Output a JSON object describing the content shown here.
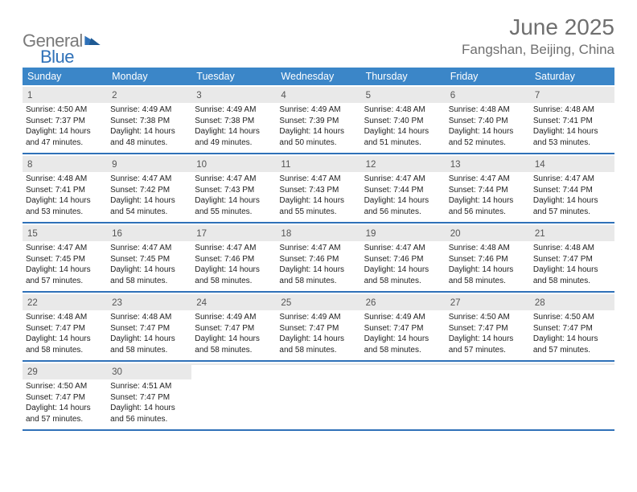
{
  "brand": {
    "part1": "General",
    "part2": "Blue"
  },
  "title": "June 2025",
  "location": "Fangshan, Beijing, China",
  "colors": {
    "header_bg": "#3b86c8",
    "divider": "#2f71b8",
    "day_header_bg": "#e9e9e9",
    "brand_gray": "#7a7a7a",
    "brand_blue": "#2f71b8",
    "title_gray": "#6f6f6f",
    "text": "#222222",
    "white": "#ffffff"
  },
  "typography": {
    "month_title_size": 28,
    "location_size": 17,
    "weekday_size": 12.5,
    "daynum_size": 11.5,
    "body_size": 10
  },
  "weekdays": [
    "Sunday",
    "Monday",
    "Tuesday",
    "Wednesday",
    "Thursday",
    "Friday",
    "Saturday"
  ],
  "weeks": [
    [
      {
        "n": "1",
        "sr": "Sunrise: 4:50 AM",
        "ss": "Sunset: 7:37 PM",
        "dl1": "Daylight: 14 hours",
        "dl2": "and 47 minutes."
      },
      {
        "n": "2",
        "sr": "Sunrise: 4:49 AM",
        "ss": "Sunset: 7:38 PM",
        "dl1": "Daylight: 14 hours",
        "dl2": "and 48 minutes."
      },
      {
        "n": "3",
        "sr": "Sunrise: 4:49 AM",
        "ss": "Sunset: 7:38 PM",
        "dl1": "Daylight: 14 hours",
        "dl2": "and 49 minutes."
      },
      {
        "n": "4",
        "sr": "Sunrise: 4:49 AM",
        "ss": "Sunset: 7:39 PM",
        "dl1": "Daylight: 14 hours",
        "dl2": "and 50 minutes."
      },
      {
        "n": "5",
        "sr": "Sunrise: 4:48 AM",
        "ss": "Sunset: 7:40 PM",
        "dl1": "Daylight: 14 hours",
        "dl2": "and 51 minutes."
      },
      {
        "n": "6",
        "sr": "Sunrise: 4:48 AM",
        "ss": "Sunset: 7:40 PM",
        "dl1": "Daylight: 14 hours",
        "dl2": "and 52 minutes."
      },
      {
        "n": "7",
        "sr": "Sunrise: 4:48 AM",
        "ss": "Sunset: 7:41 PM",
        "dl1": "Daylight: 14 hours",
        "dl2": "and 53 minutes."
      }
    ],
    [
      {
        "n": "8",
        "sr": "Sunrise: 4:48 AM",
        "ss": "Sunset: 7:41 PM",
        "dl1": "Daylight: 14 hours",
        "dl2": "and 53 minutes."
      },
      {
        "n": "9",
        "sr": "Sunrise: 4:47 AM",
        "ss": "Sunset: 7:42 PM",
        "dl1": "Daylight: 14 hours",
        "dl2": "and 54 minutes."
      },
      {
        "n": "10",
        "sr": "Sunrise: 4:47 AM",
        "ss": "Sunset: 7:43 PM",
        "dl1": "Daylight: 14 hours",
        "dl2": "and 55 minutes."
      },
      {
        "n": "11",
        "sr": "Sunrise: 4:47 AM",
        "ss": "Sunset: 7:43 PM",
        "dl1": "Daylight: 14 hours",
        "dl2": "and 55 minutes."
      },
      {
        "n": "12",
        "sr": "Sunrise: 4:47 AM",
        "ss": "Sunset: 7:44 PM",
        "dl1": "Daylight: 14 hours",
        "dl2": "and 56 minutes."
      },
      {
        "n": "13",
        "sr": "Sunrise: 4:47 AM",
        "ss": "Sunset: 7:44 PM",
        "dl1": "Daylight: 14 hours",
        "dl2": "and 56 minutes."
      },
      {
        "n": "14",
        "sr": "Sunrise: 4:47 AM",
        "ss": "Sunset: 7:44 PM",
        "dl1": "Daylight: 14 hours",
        "dl2": "and 57 minutes."
      }
    ],
    [
      {
        "n": "15",
        "sr": "Sunrise: 4:47 AM",
        "ss": "Sunset: 7:45 PM",
        "dl1": "Daylight: 14 hours",
        "dl2": "and 57 minutes."
      },
      {
        "n": "16",
        "sr": "Sunrise: 4:47 AM",
        "ss": "Sunset: 7:45 PM",
        "dl1": "Daylight: 14 hours",
        "dl2": "and 58 minutes."
      },
      {
        "n": "17",
        "sr": "Sunrise: 4:47 AM",
        "ss": "Sunset: 7:46 PM",
        "dl1": "Daylight: 14 hours",
        "dl2": "and 58 minutes."
      },
      {
        "n": "18",
        "sr": "Sunrise: 4:47 AM",
        "ss": "Sunset: 7:46 PM",
        "dl1": "Daylight: 14 hours",
        "dl2": "and 58 minutes."
      },
      {
        "n": "19",
        "sr": "Sunrise: 4:47 AM",
        "ss": "Sunset: 7:46 PM",
        "dl1": "Daylight: 14 hours",
        "dl2": "and 58 minutes."
      },
      {
        "n": "20",
        "sr": "Sunrise: 4:48 AM",
        "ss": "Sunset: 7:46 PM",
        "dl1": "Daylight: 14 hours",
        "dl2": "and 58 minutes."
      },
      {
        "n": "21",
        "sr": "Sunrise: 4:48 AM",
        "ss": "Sunset: 7:47 PM",
        "dl1": "Daylight: 14 hours",
        "dl2": "and 58 minutes."
      }
    ],
    [
      {
        "n": "22",
        "sr": "Sunrise: 4:48 AM",
        "ss": "Sunset: 7:47 PM",
        "dl1": "Daylight: 14 hours",
        "dl2": "and 58 minutes."
      },
      {
        "n": "23",
        "sr": "Sunrise: 4:48 AM",
        "ss": "Sunset: 7:47 PM",
        "dl1": "Daylight: 14 hours",
        "dl2": "and 58 minutes."
      },
      {
        "n": "24",
        "sr": "Sunrise: 4:49 AM",
        "ss": "Sunset: 7:47 PM",
        "dl1": "Daylight: 14 hours",
        "dl2": "and 58 minutes."
      },
      {
        "n": "25",
        "sr": "Sunrise: 4:49 AM",
        "ss": "Sunset: 7:47 PM",
        "dl1": "Daylight: 14 hours",
        "dl2": "and 58 minutes."
      },
      {
        "n": "26",
        "sr": "Sunrise: 4:49 AM",
        "ss": "Sunset: 7:47 PM",
        "dl1": "Daylight: 14 hours",
        "dl2": "and 58 minutes."
      },
      {
        "n": "27",
        "sr": "Sunrise: 4:50 AM",
        "ss": "Sunset: 7:47 PM",
        "dl1": "Daylight: 14 hours",
        "dl2": "and 57 minutes."
      },
      {
        "n": "28",
        "sr": "Sunrise: 4:50 AM",
        "ss": "Sunset: 7:47 PM",
        "dl1": "Daylight: 14 hours",
        "dl2": "and 57 minutes."
      }
    ],
    [
      {
        "n": "29",
        "sr": "Sunrise: 4:50 AM",
        "ss": "Sunset: 7:47 PM",
        "dl1": "Daylight: 14 hours",
        "dl2": "and 57 minutes."
      },
      {
        "n": "30",
        "sr": "Sunrise: 4:51 AM",
        "ss": "Sunset: 7:47 PM",
        "dl1": "Daylight: 14 hours",
        "dl2": "and 56 minutes."
      },
      null,
      null,
      null,
      null,
      null
    ]
  ]
}
